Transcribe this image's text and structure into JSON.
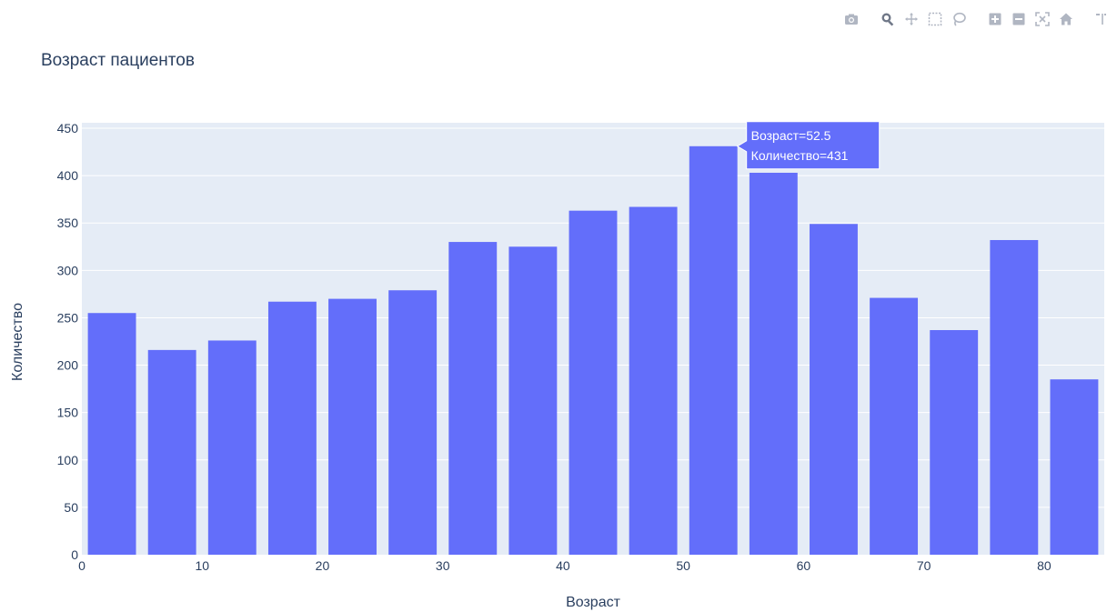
{
  "toolbar": {
    "buttons": [
      {
        "name": "camera-icon"
      },
      {
        "name": "zoom-icon"
      },
      {
        "name": "pan-icon"
      },
      {
        "name": "box-select-icon"
      },
      {
        "name": "lasso-select-icon"
      },
      {
        "name": "zoom-in-icon"
      },
      {
        "name": "zoom-out-icon"
      },
      {
        "name": "autoscale-icon"
      },
      {
        "name": "home-icon"
      },
      {
        "name": "spike-lines-icon"
      }
    ],
    "icon_color": "#b0b6c2",
    "active_color": "#707888"
  },
  "chart_data": {
    "type": "bar",
    "title": "Возраст пациентов",
    "xlabel": "Возраст",
    "ylabel": "Количество",
    "x": [
      2.5,
      7.5,
      12.5,
      17.5,
      22.5,
      27.5,
      32.5,
      37.5,
      42.5,
      47.5,
      52.5,
      57.5,
      62.5,
      67.5,
      72.5,
      77.5,
      82.5
    ],
    "values": [
      255,
      216,
      226,
      267,
      270,
      279,
      330,
      325,
      363,
      367,
      431,
      403,
      349,
      271,
      237,
      332,
      185
    ],
    "xlim": [
      0,
      85
    ],
    "ylim": [
      0,
      450
    ],
    "xticks": [
      0,
      10,
      20,
      30,
      40,
      50,
      60,
      70,
      80
    ],
    "yticks": [
      0,
      50,
      100,
      150,
      200,
      250,
      300,
      350,
      400,
      450
    ],
    "grid": true,
    "bar_color": "#636efa",
    "plot_bg": "#e5ecf6",
    "tooltip": {
      "line1": "Возраст=52.5",
      "line2": "Количество=431",
      "bar_index": 10
    }
  }
}
